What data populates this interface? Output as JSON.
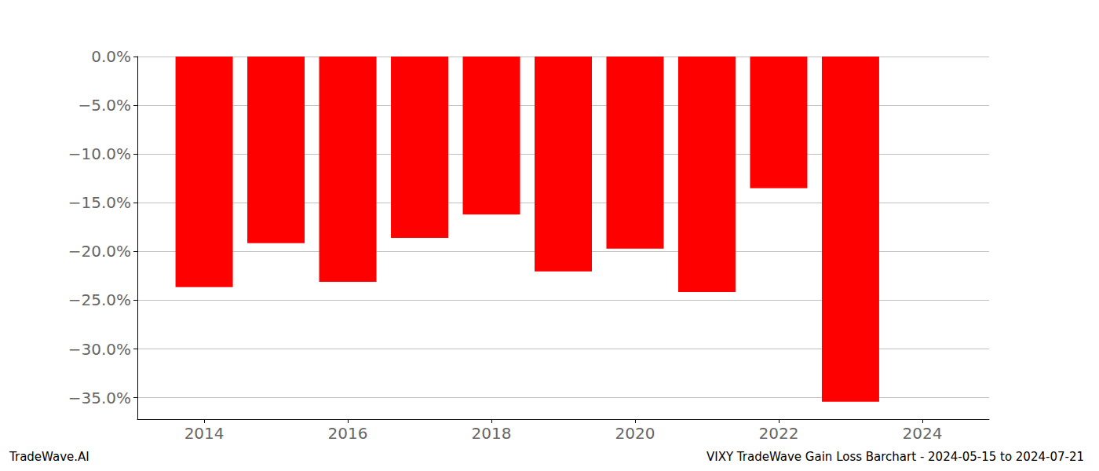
{
  "chart_data": {
    "type": "bar",
    "title": "VIXY TradeWave Gain Loss Barchart - 2024-05-15 to 2024-07-21",
    "annotations": [
      "TradeWave.AI"
    ],
    "x": [
      2014,
      2015,
      2016,
      2017,
      2018,
      2019,
      2020,
      2021,
      2022,
      2023
    ],
    "values": [
      -23.65,
      -19.15,
      -23.1,
      -18.6,
      -16.2,
      -22.05,
      -19.7,
      -24.15,
      -13.5,
      -35.4
    ],
    "color": "#ff0000",
    "xlim": [
      2013.07,
      2024.93
    ],
    "xticks": [
      2014,
      2016,
      2018,
      2020,
      2022,
      2024
    ],
    "ylim": [
      -37.2,
      0
    ],
    "yticks": [
      {
        "value": -35,
        "label": "−35.0%"
      },
      {
        "value": -30,
        "label": "−30.0%"
      },
      {
        "value": -25,
        "label": "−25.0%"
      },
      {
        "value": -20,
        "label": "−20.0%"
      },
      {
        "value": -15,
        "label": "−15.0%"
      },
      {
        "value": -10,
        "label": "−10.0%"
      },
      {
        "value": -5,
        "label": "−5.0%"
      },
      {
        "value": 0,
        "label": "0.0%"
      }
    ],
    "grid": true
  }
}
